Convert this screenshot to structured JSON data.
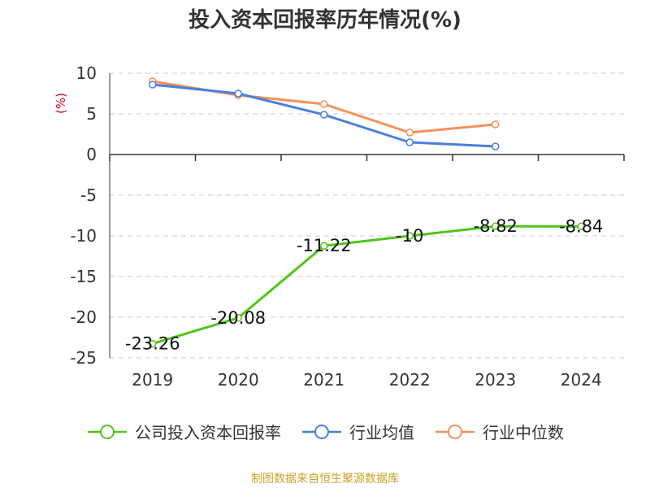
{
  "title": "投入资本回报率历年情况(%)",
  "source": "制图数据来自恒生聚源数据库",
  "chart_data": {
    "type": "line",
    "categories": [
      "2019",
      "2020",
      "2021",
      "2022",
      "2023",
      "2024"
    ],
    "ylabel": "(%)",
    "ylim": [
      -25,
      10
    ],
    "yticks": [
      10,
      5,
      0,
      -5,
      -10,
      -15,
      -20,
      -25
    ],
    "grid": true,
    "legend_position": "bottom",
    "series": [
      {
        "name": "公司投入资本回报率",
        "color": "#52c41a",
        "values": [
          -23.26,
          -20.08,
          -11.22,
          -10,
          -8.82,
          -8.84
        ],
        "labels": [
          "-23.26",
          "-20.08",
          "-11.22",
          "-10",
          "-8.82",
          "-8.84"
        ]
      },
      {
        "name": "行业均值",
        "color": "#4a7fdb",
        "values": [
          8.6,
          7.5,
          4.9,
          1.5,
          1.0,
          null
        ]
      },
      {
        "name": "行业中位数",
        "color": "#f5905a",
        "values": [
          9.0,
          7.3,
          6.2,
          2.7,
          3.7,
          null
        ]
      }
    ]
  }
}
